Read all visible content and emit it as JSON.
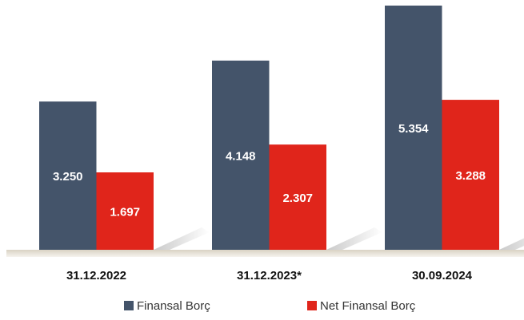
{
  "chart_data": {
    "type": "bar",
    "categories": [
      "31.12.2022",
      "31.12.2023*",
      "30.09.2024"
    ],
    "series": [
      {
        "name": "Finansal Borç",
        "color": "#44546a",
        "values": [
          3250,
          4148,
          5354
        ],
        "value_labels": [
          "3.250",
          "4.148",
          "5.354"
        ]
      },
      {
        "name": "Net Finansal Borç",
        "color": "#e0251b",
        "values": [
          1697,
          2307,
          3288
        ],
        "value_labels": [
          "1.697",
          "2.307",
          "3.288"
        ]
      }
    ]
  }
}
